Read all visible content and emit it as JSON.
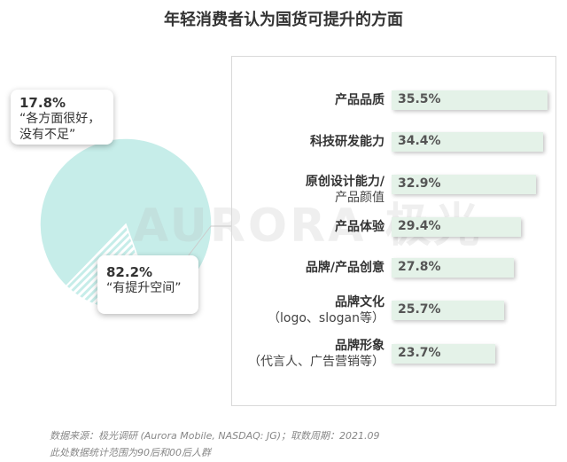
{
  "title": "年轻消费者认为国货可提升的方面",
  "chart_data": [
    {
      "type": "pie",
      "slices": [
        {
          "value": 17.8,
          "value_label": "17.8%",
          "label": "“各方面很好，没有不足”",
          "pattern": "hatched"
        },
        {
          "value": 82.2,
          "value_label": "82.2%",
          "label": "“有提升空间”",
          "pattern": "solid"
        }
      ],
      "colors": {
        "fill": "#c6ede9",
        "hatch_stroke": "#c6ede9"
      }
    },
    {
      "type": "bar",
      "orientation": "horizontal",
      "categories": [
        {
          "label": "产品品质",
          "sub": ""
        },
        {
          "label": "科技研发能力",
          "sub": ""
        },
        {
          "label": "原创设计能力/",
          "sub": "产品颜值"
        },
        {
          "label": "产品体验",
          "sub": ""
        },
        {
          "label": "品牌/产品创意",
          "sub": ""
        },
        {
          "label": "品牌文化",
          "sub": "（logo、slogan等）"
        },
        {
          "label": "品牌形象",
          "sub": "（代言人、广告营销等）"
        }
      ],
      "values": [
        35.5,
        34.4,
        32.9,
        29.4,
        27.8,
        25.7,
        23.7
      ],
      "value_labels": [
        "35.5%",
        "34.4%",
        "32.9%",
        "29.4%",
        "27.8%",
        "25.7%",
        "23.7%"
      ],
      "xlim": [
        0,
        35.5
      ],
      "colors": {
        "bar": "#e4f2e8"
      }
    }
  ],
  "watermark": "AURORA 极光",
  "footnotes": [
    "数据来源：极光调研 (Aurora Mobile, NASDAQ: JG)；取数周期：2021.09",
    "此处数据统计范围为90后和00后人群"
  ]
}
